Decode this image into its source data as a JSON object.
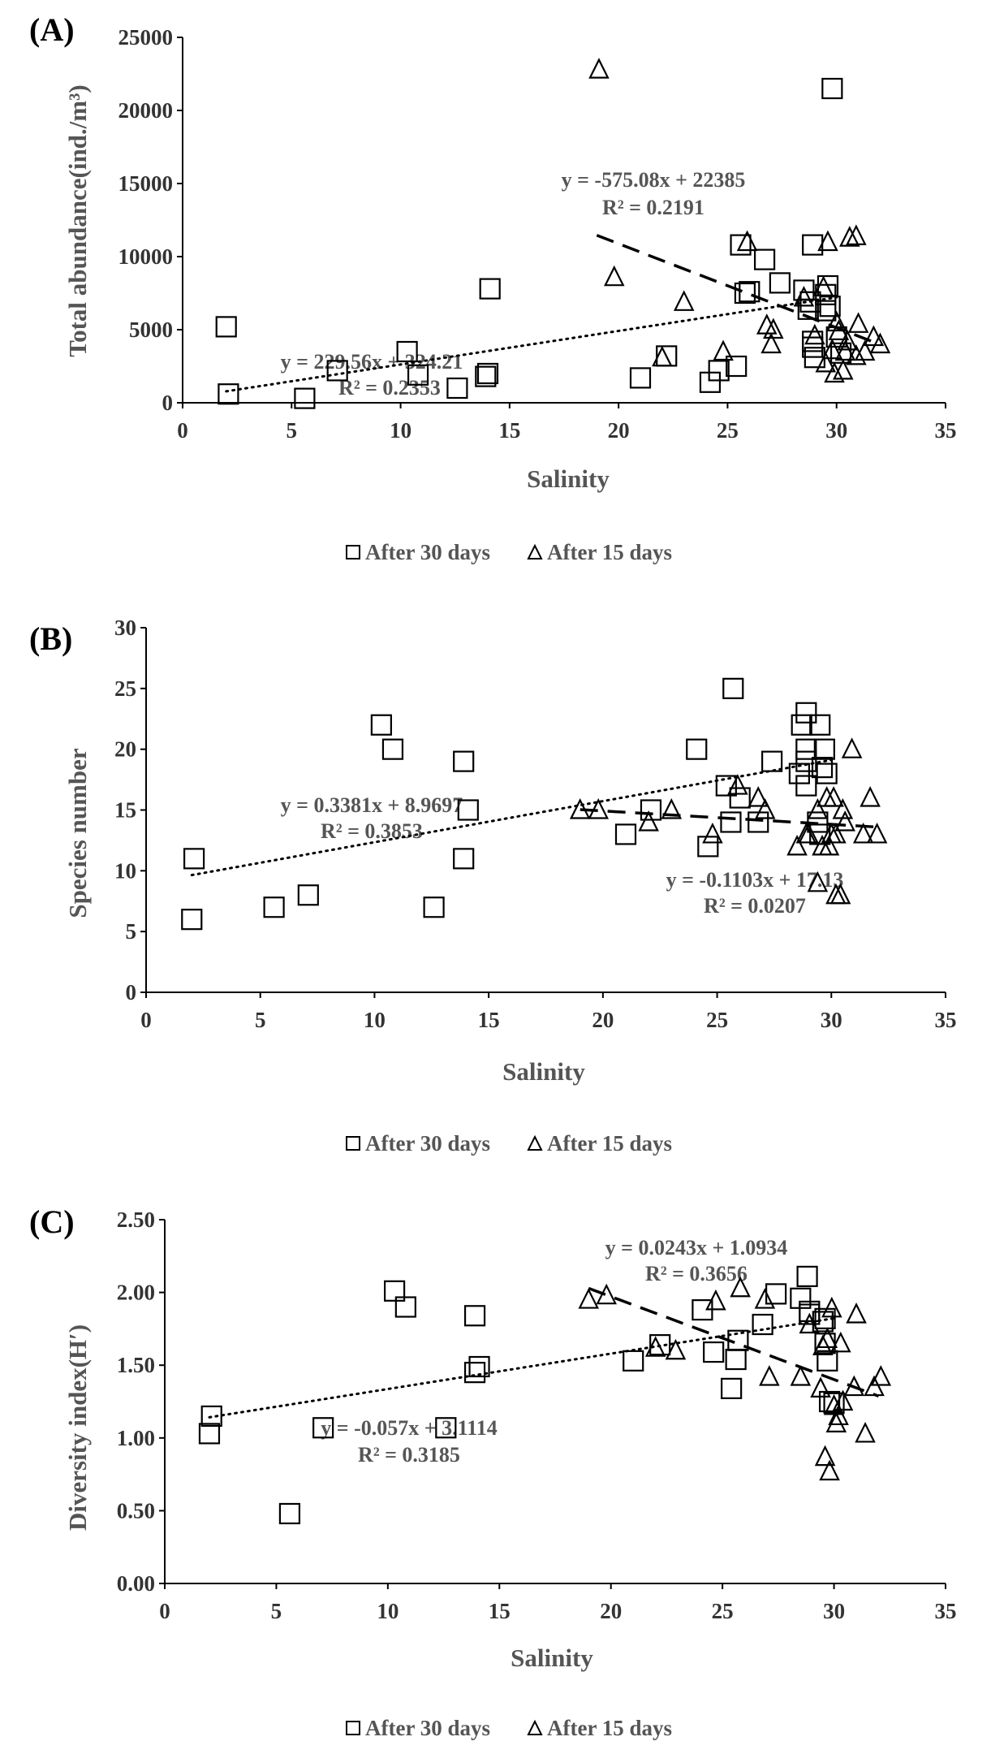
{
  "chart_data": [
    {
      "type": "scatter",
      "panel_label": "(A)",
      "xlabel": "Salinity",
      "ylabel": "Total abundance(ind./m³)",
      "xlim": [
        0,
        35
      ],
      "ylim": [
        0,
        25000
      ],
      "xticks": [
        "0",
        "5",
        "10",
        "15",
        "20",
        "25",
        "30",
        "35"
      ],
      "yticks": [
        "0",
        "5000",
        "10000",
        "15000",
        "20000",
        "25000"
      ],
      "legend": [
        "After 30 days",
        "After 15 days"
      ],
      "series": [
        {
          "name": "After 30 days",
          "marker": "square",
          "points": [
            [
              2,
              5200
            ],
            [
              2.1,
              600
            ],
            [
              5.6,
              300
            ],
            [
              7.1,
              2200
            ],
            [
              10.3,
              3500
            ],
            [
              10.8,
              1900
            ],
            [
              12.6,
              1000
            ],
            [
              13.9,
              1800
            ],
            [
              14,
              2000
            ],
            [
              14.1,
              7800
            ],
            [
              21,
              1700
            ],
            [
              22.2,
              3200
            ],
            [
              24.2,
              1400
            ],
            [
              24.6,
              2200
            ],
            [
              25.4,
              2500
            ],
            [
              25.6,
              10800
            ],
            [
              26,
              7600
            ],
            [
              25.8,
              7500
            ],
            [
              26.7,
              9800
            ],
            [
              27.4,
              8200
            ],
            [
              28.5,
              7700
            ],
            [
              28.9,
              10800
            ],
            [
              28.7,
              6400
            ],
            [
              28.8,
              6900
            ],
            [
              28.9,
              4200
            ],
            [
              28.9,
              3800
            ],
            [
              29,
              3100
            ],
            [
              29.5,
              6300
            ],
            [
              29.5,
              7400
            ],
            [
              29.6,
              8000
            ],
            [
              29.7,
              6600
            ],
            [
              29.8,
              21500
            ],
            [
              30,
              4500
            ],
            [
              30.2,
              3400
            ]
          ]
        },
        {
          "name": "After 15 days",
          "marker": "triangle",
          "points": [
            [
              19.1,
              22800
            ],
            [
              19.8,
              8600
            ],
            [
              22,
              3100
            ],
            [
              23,
              6900
            ],
            [
              24.8,
              3500
            ],
            [
              25.9,
              11000
            ],
            [
              26.8,
              5300
            ],
            [
              27.1,
              5000
            ],
            [
              27,
              4000
            ],
            [
              28.5,
              7200
            ],
            [
              29,
              4600
            ],
            [
              29.4,
              7900
            ],
            [
              29.6,
              11000
            ],
            [
              29.5,
              2700
            ],
            [
              29.8,
              3600
            ],
            [
              29.9,
              2000
            ],
            [
              30,
              5500
            ],
            [
              30.1,
              4900
            ],
            [
              30.3,
              2200
            ],
            [
              30.4,
              3500
            ],
            [
              30.5,
              4200
            ],
            [
              30.6,
              11300
            ],
            [
              30.9,
              11400
            ],
            [
              30.9,
              3200
            ],
            [
              31,
              5400
            ],
            [
              31.3,
              3500
            ],
            [
              31.7,
              4500
            ],
            [
              32,
              4000
            ]
          ]
        }
      ],
      "trendlines": [
        {
          "series": "After 30 days",
          "style": "dotted",
          "slope": 229.56,
          "intercept": 324.21,
          "x_range": [
            2,
            30
          ],
          "equation": "y = 229.56x + 324.21",
          "r2": "R² = 0.2353"
        },
        {
          "series": "After 15 days",
          "style": "dashed",
          "slope": -575.08,
          "intercept": 22385,
          "x_range": [
            19,
            32
          ],
          "equation": "y = -575.08x + 22385",
          "r2": "R² = 0.2191"
        }
      ]
    },
    {
      "type": "scatter",
      "panel_label": "(B)",
      "xlabel": "Salinity",
      "ylabel": "Species number",
      "xlim": [
        0,
        35
      ],
      "ylim": [
        0,
        30
      ],
      "xticks": [
        "0",
        "5",
        "10",
        "15",
        "20",
        "25",
        "30",
        "35"
      ],
      "yticks": [
        "0",
        "5",
        "10",
        "15",
        "20",
        "25",
        "30"
      ],
      "legend": [
        "After 30 days",
        "After 15 days"
      ],
      "series": [
        {
          "name": "After 30 days",
          "marker": "square",
          "points": [
            [
              2,
              6
            ],
            [
              2.1,
              11
            ],
            [
              5.6,
              7
            ],
            [
              7.1,
              8
            ],
            [
              10.3,
              22
            ],
            [
              10.8,
              20
            ],
            [
              12.6,
              7
            ],
            [
              13.9,
              19
            ],
            [
              13.9,
              11
            ],
            [
              14.1,
              15
            ],
            [
              21,
              13
            ],
            [
              22.1,
              15
            ],
            [
              24.1,
              20
            ],
            [
              24.6,
              12
            ],
            [
              25.4,
              17
            ],
            [
              25.6,
              14
            ],
            [
              25.7,
              25
            ],
            [
              26,
              16
            ],
            [
              26.8,
              14
            ],
            [
              27.4,
              19
            ],
            [
              28.6,
              18
            ],
            [
              28.7,
              22
            ],
            [
              28.9,
              23
            ],
            [
              28.9,
              20
            ],
            [
              28.9,
              19
            ],
            [
              28.9,
              17
            ],
            [
              29.5,
              22
            ],
            [
              29.6,
              18.5
            ],
            [
              29.7,
              20
            ],
            [
              29.8,
              18
            ],
            [
              29.5,
              13
            ],
            [
              29.4,
              14
            ]
          ]
        },
        {
          "name": "After 15 days",
          "marker": "triangle",
          "points": [
            [
              19,
              15
            ],
            [
              19.8,
              15
            ],
            [
              22,
              14
            ],
            [
              23,
              15
            ],
            [
              24.8,
              13
            ],
            [
              25.9,
              17
            ],
            [
              26.8,
              16
            ],
            [
              27.1,
              15
            ],
            [
              28.5,
              12
            ],
            [
              28.9,
              13
            ],
            [
              29,
              13
            ],
            [
              29.4,
              9
            ],
            [
              29.4,
              15
            ],
            [
              29.6,
              12
            ],
            [
              29.8,
              16
            ],
            [
              29.9,
              12
            ],
            [
              30,
              13
            ],
            [
              30.1,
              16
            ],
            [
              30.2,
              13
            ],
            [
              30.2,
              8
            ],
            [
              30.4,
              8
            ],
            [
              30.5,
              15
            ],
            [
              30.6,
              14
            ],
            [
              30.9,
              20
            ],
            [
              31.4,
              13
            ],
            [
              31.7,
              16
            ],
            [
              32,
              13
            ]
          ]
        }
      ],
      "trendlines": [
        {
          "series": "After 30 days",
          "style": "dotted",
          "slope": 0.3381,
          "intercept": 8.9697,
          "x_range": [
            2,
            30
          ],
          "equation": "y = 0.3381x + 8.9697",
          "r2": "R² = 0.3853"
        },
        {
          "series": "After 15 days",
          "style": "dashed",
          "slope": -0.1103,
          "intercept": 17.13,
          "x_range": [
            19,
            32
          ],
          "equation": "y = -0.1103x + 17.13",
          "r2": "R² = 0.0207"
        }
      ]
    },
    {
      "type": "scatter",
      "panel_label": "(C)",
      "xlabel": "Salinity",
      "ylabel": "Diversity index(H′)",
      "xlim": [
        0,
        35
      ],
      "ylim": [
        0,
        2.5
      ],
      "xticks": [
        "0",
        "5",
        "10",
        "15",
        "20",
        "25",
        "30",
        "35"
      ],
      "yticks": [
        "0.00",
        "0.50",
        "1.00",
        "1.50",
        "2.00",
        "2.50"
      ],
      "legend": [
        "After 30 days",
        "After 15 days"
      ],
      "series": [
        {
          "name": "After 30 days",
          "marker": "square",
          "points": [
            [
              2,
              1.03
            ],
            [
              2.1,
              1.15
            ],
            [
              5.6,
              0.48
            ],
            [
              7.1,
              1.07
            ],
            [
              10.3,
              2.01
            ],
            [
              10.8,
              1.9
            ],
            [
              12.6,
              1.07
            ],
            [
              13.9,
              1.84
            ],
            [
              13.9,
              1.45
            ],
            [
              14.1,
              1.49
            ],
            [
              21,
              1.53
            ],
            [
              22.2,
              1.64
            ],
            [
              24.1,
              1.88
            ],
            [
              24.6,
              1.59
            ],
            [
              25.4,
              1.34
            ],
            [
              25.6,
              1.54
            ],
            [
              25.7,
              1.67
            ],
            [
              26.8,
              1.78
            ],
            [
              27.4,
              1.99
            ],
            [
              28.5,
              1.96
            ],
            [
              28.8,
              2.11
            ],
            [
              28.9,
              1.87
            ],
            [
              28.9,
              1.85
            ],
            [
              29.5,
              1.8
            ],
            [
              29.6,
              1.65
            ],
            [
              29.7,
              1.53
            ],
            [
              29.8,
              1.25
            ],
            [
              30,
              1.24
            ],
            [
              29.6,
              1.82
            ]
          ]
        },
        {
          "name": "After 15 days",
          "marker": "triangle",
          "points": [
            [
              19,
              1.95
            ],
            [
              19.8,
              1.98
            ],
            [
              22,
              1.62
            ],
            [
              22.9,
              1.6
            ],
            [
              24.7,
              1.94
            ],
            [
              25.8,
              2.03
            ],
            [
              26.9,
              1.95
            ],
            [
              27.1,
              1.42
            ],
            [
              28.5,
              1.42
            ],
            [
              28.9,
              1.78
            ],
            [
              29.4,
              1.34
            ],
            [
              29.5,
              1.63
            ],
            [
              29.6,
              0.87
            ],
            [
              29.7,
              1.68
            ],
            [
              29.8,
              0.77
            ],
            [
              29.9,
              1.89
            ],
            [
              30,
              1.22
            ],
            [
              30.1,
              1.1
            ],
            [
              30.2,
              1.15
            ],
            [
              30.3,
              1.65
            ],
            [
              30.4,
              1.25
            ],
            [
              30.9,
              1.35
            ],
            [
              31,
              1.85
            ],
            [
              31.4,
              1.03
            ],
            [
              31.8,
              1.35
            ],
            [
              32.1,
              1.42
            ]
          ]
        }
      ],
      "trendlines": [
        {
          "series": "After 30 days",
          "style": "dotted",
          "slope": 0.0243,
          "intercept": 1.0934,
          "x_range": [
            2,
            30
          ],
          "equation": "y = 0.0243x + 1.0934",
          "r2": "R² = 0.3656"
        },
        {
          "series": "After 15 days",
          "style": "dashed",
          "slope": -0.057,
          "intercept": 3.1114,
          "x_range": [
            19,
            32
          ],
          "equation": "y = -0.057x + 3.1114",
          "r2": "R² = 0.3185"
        }
      ]
    }
  ]
}
